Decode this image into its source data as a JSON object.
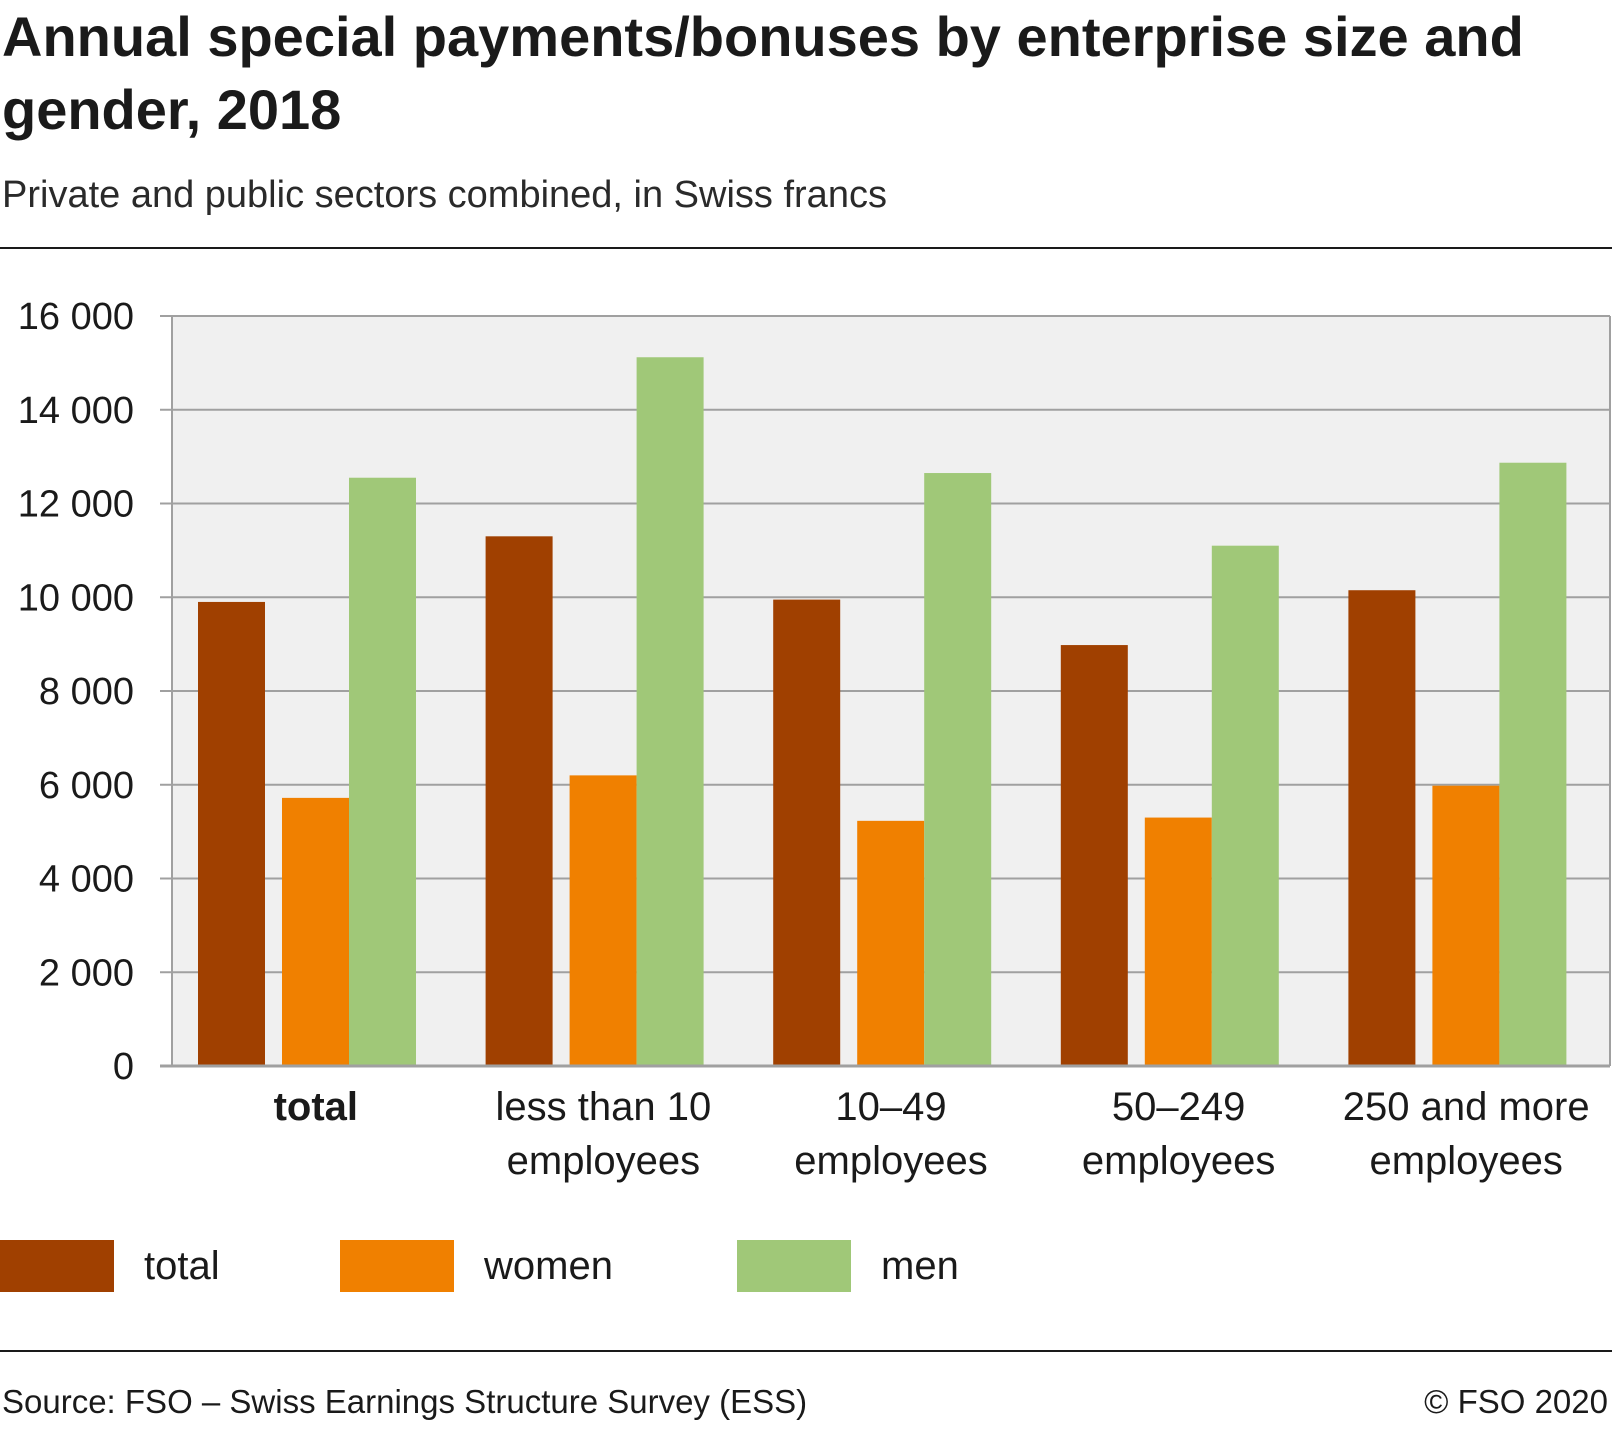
{
  "title": "Annual special payments/bonuses by enterprise size and gender, 2018",
  "subtitle": "Private and public sectors combined, in Swiss francs",
  "source": "Source: FSO – Swiss Earnings Structure Survey (ESS)",
  "copyright": "© FSO 2020",
  "colors": {
    "total": "#a04000",
    "women": "#f08000",
    "men": "#a0c878",
    "plot_background": "#f0f0f0",
    "grid": "#a0a0a0"
  },
  "chart_data": {
    "type": "bar",
    "categories": [
      [
        "total"
      ],
      [
        "less than 10",
        "employees"
      ],
      [
        "10–49",
        "employees"
      ],
      [
        "50–249",
        "employees"
      ],
      [
        "250 and more",
        "employees"
      ]
    ],
    "bold_categories": [
      0
    ],
    "series": [
      {
        "name": "total",
        "values": [
          9900,
          11300,
          9950,
          8980,
          10150
        ]
      },
      {
        "name": "women",
        "values": [
          5720,
          6200,
          5230,
          5300,
          5980
        ]
      },
      {
        "name": "men",
        "values": [
          12550,
          15120,
          12650,
          11100,
          12870
        ]
      }
    ],
    "ylim": [
      0,
      16000
    ],
    "yticks": [
      0,
      2000,
      4000,
      6000,
      8000,
      10000,
      12000,
      14000,
      16000
    ],
    "ytick_labels": [
      "0",
      "2 000",
      "4 000",
      "6 000",
      "8 000",
      "10 000",
      "12 000",
      "14 000",
      "16 000"
    ],
    "grid": true,
    "legend_position": "bottom-left"
  }
}
